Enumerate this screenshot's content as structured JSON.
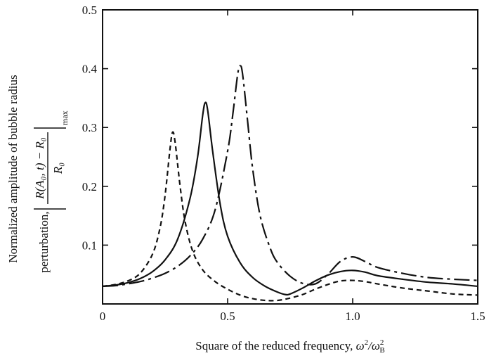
{
  "chart_data": {
    "type": "line",
    "xlabel": "Square of the reduced frequency, ω²/ω²_B",
    "xlabel_parts": {
      "prefix": "Square of the reduced frequency, ",
      "omega": "ω",
      "sup": "2",
      "over": "/ω",
      "sup2": "2",
      "sub": "B"
    },
    "ylabel_line1": "Normalized amplitude of bubble radius",
    "ylabel_line2": "perturbation,",
    "ylabel_expr": {
      "numerator": "R(A₀, t) − R₀",
      "denominator": "R₀",
      "subscript": "max"
    },
    "xlim": [
      0,
      1.5
    ],
    "ylim": [
      0,
      0.5
    ],
    "xticks": [
      0,
      0.5,
      1.0,
      1.5
    ],
    "xtick_labels": [
      "0",
      "0.5",
      "1.0",
      "1.5"
    ],
    "yticks": [
      0.1,
      0.2,
      0.3,
      0.4,
      0.5
    ],
    "ytick_labels": [
      "0.1",
      "0.2",
      "0.3",
      "0.4",
      "0.5"
    ],
    "grid": false,
    "series": [
      {
        "style": "dashed",
        "x": [
          0,
          0.05,
          0.1,
          0.15,
          0.2,
          0.23,
          0.25,
          0.27,
          0.28,
          0.29,
          0.31,
          0.33,
          0.36,
          0.4,
          0.45,
          0.5,
          0.55,
          0.6,
          0.65,
          0.7,
          0.75,
          0.8,
          0.85,
          0.9,
          0.95,
          1.0,
          1.05,
          1.1,
          1.2,
          1.3,
          1.4,
          1.5
        ],
        "y": [
          0.03,
          0.033,
          0.039,
          0.052,
          0.085,
          0.13,
          0.185,
          0.265,
          0.292,
          0.275,
          0.2,
          0.14,
          0.09,
          0.058,
          0.038,
          0.025,
          0.015,
          0.009,
          0.006,
          0.006,
          0.01,
          0.016,
          0.025,
          0.033,
          0.039,
          0.04,
          0.038,
          0.034,
          0.027,
          0.022,
          0.017,
          0.015
        ]
      },
      {
        "style": "solid",
        "x": [
          0,
          0.05,
          0.1,
          0.15,
          0.2,
          0.25,
          0.3,
          0.35,
          0.38,
          0.4,
          0.41,
          0.42,
          0.44,
          0.47,
          0.5,
          0.55,
          0.6,
          0.65,
          0.7,
          0.73,
          0.75,
          0.8,
          0.85,
          0.9,
          0.95,
          1.0,
          1.05,
          1.1,
          1.2,
          1.3,
          1.4,
          1.5
        ],
        "y": [
          0.03,
          0.032,
          0.036,
          0.043,
          0.055,
          0.075,
          0.11,
          0.18,
          0.25,
          0.32,
          0.342,
          0.33,
          0.26,
          0.17,
          0.115,
          0.07,
          0.045,
          0.03,
          0.02,
          0.016,
          0.017,
          0.027,
          0.039,
          0.049,
          0.055,
          0.057,
          0.054,
          0.048,
          0.042,
          0.037,
          0.034,
          0.03
        ]
      },
      {
        "style": "dash-dot",
        "x": [
          0,
          0.05,
          0.1,
          0.15,
          0.2,
          0.25,
          0.3,
          0.35,
          0.4,
          0.45,
          0.5,
          0.52,
          0.54,
          0.55,
          0.56,
          0.58,
          0.6,
          0.63,
          0.67,
          0.7,
          0.75,
          0.8,
          0.85,
          0.9,
          0.95,
          1.0,
          1.05,
          1.1,
          1.2,
          1.3,
          1.4,
          1.5
        ],
        "y": [
          0.03,
          0.031,
          0.034,
          0.038,
          0.044,
          0.052,
          0.064,
          0.082,
          0.11,
          0.16,
          0.26,
          0.32,
          0.39,
          0.405,
          0.39,
          0.31,
          0.23,
          0.15,
          0.095,
          0.07,
          0.047,
          0.035,
          0.034,
          0.05,
          0.072,
          0.08,
          0.072,
          0.062,
          0.052,
          0.045,
          0.042,
          0.04
        ]
      }
    ]
  }
}
